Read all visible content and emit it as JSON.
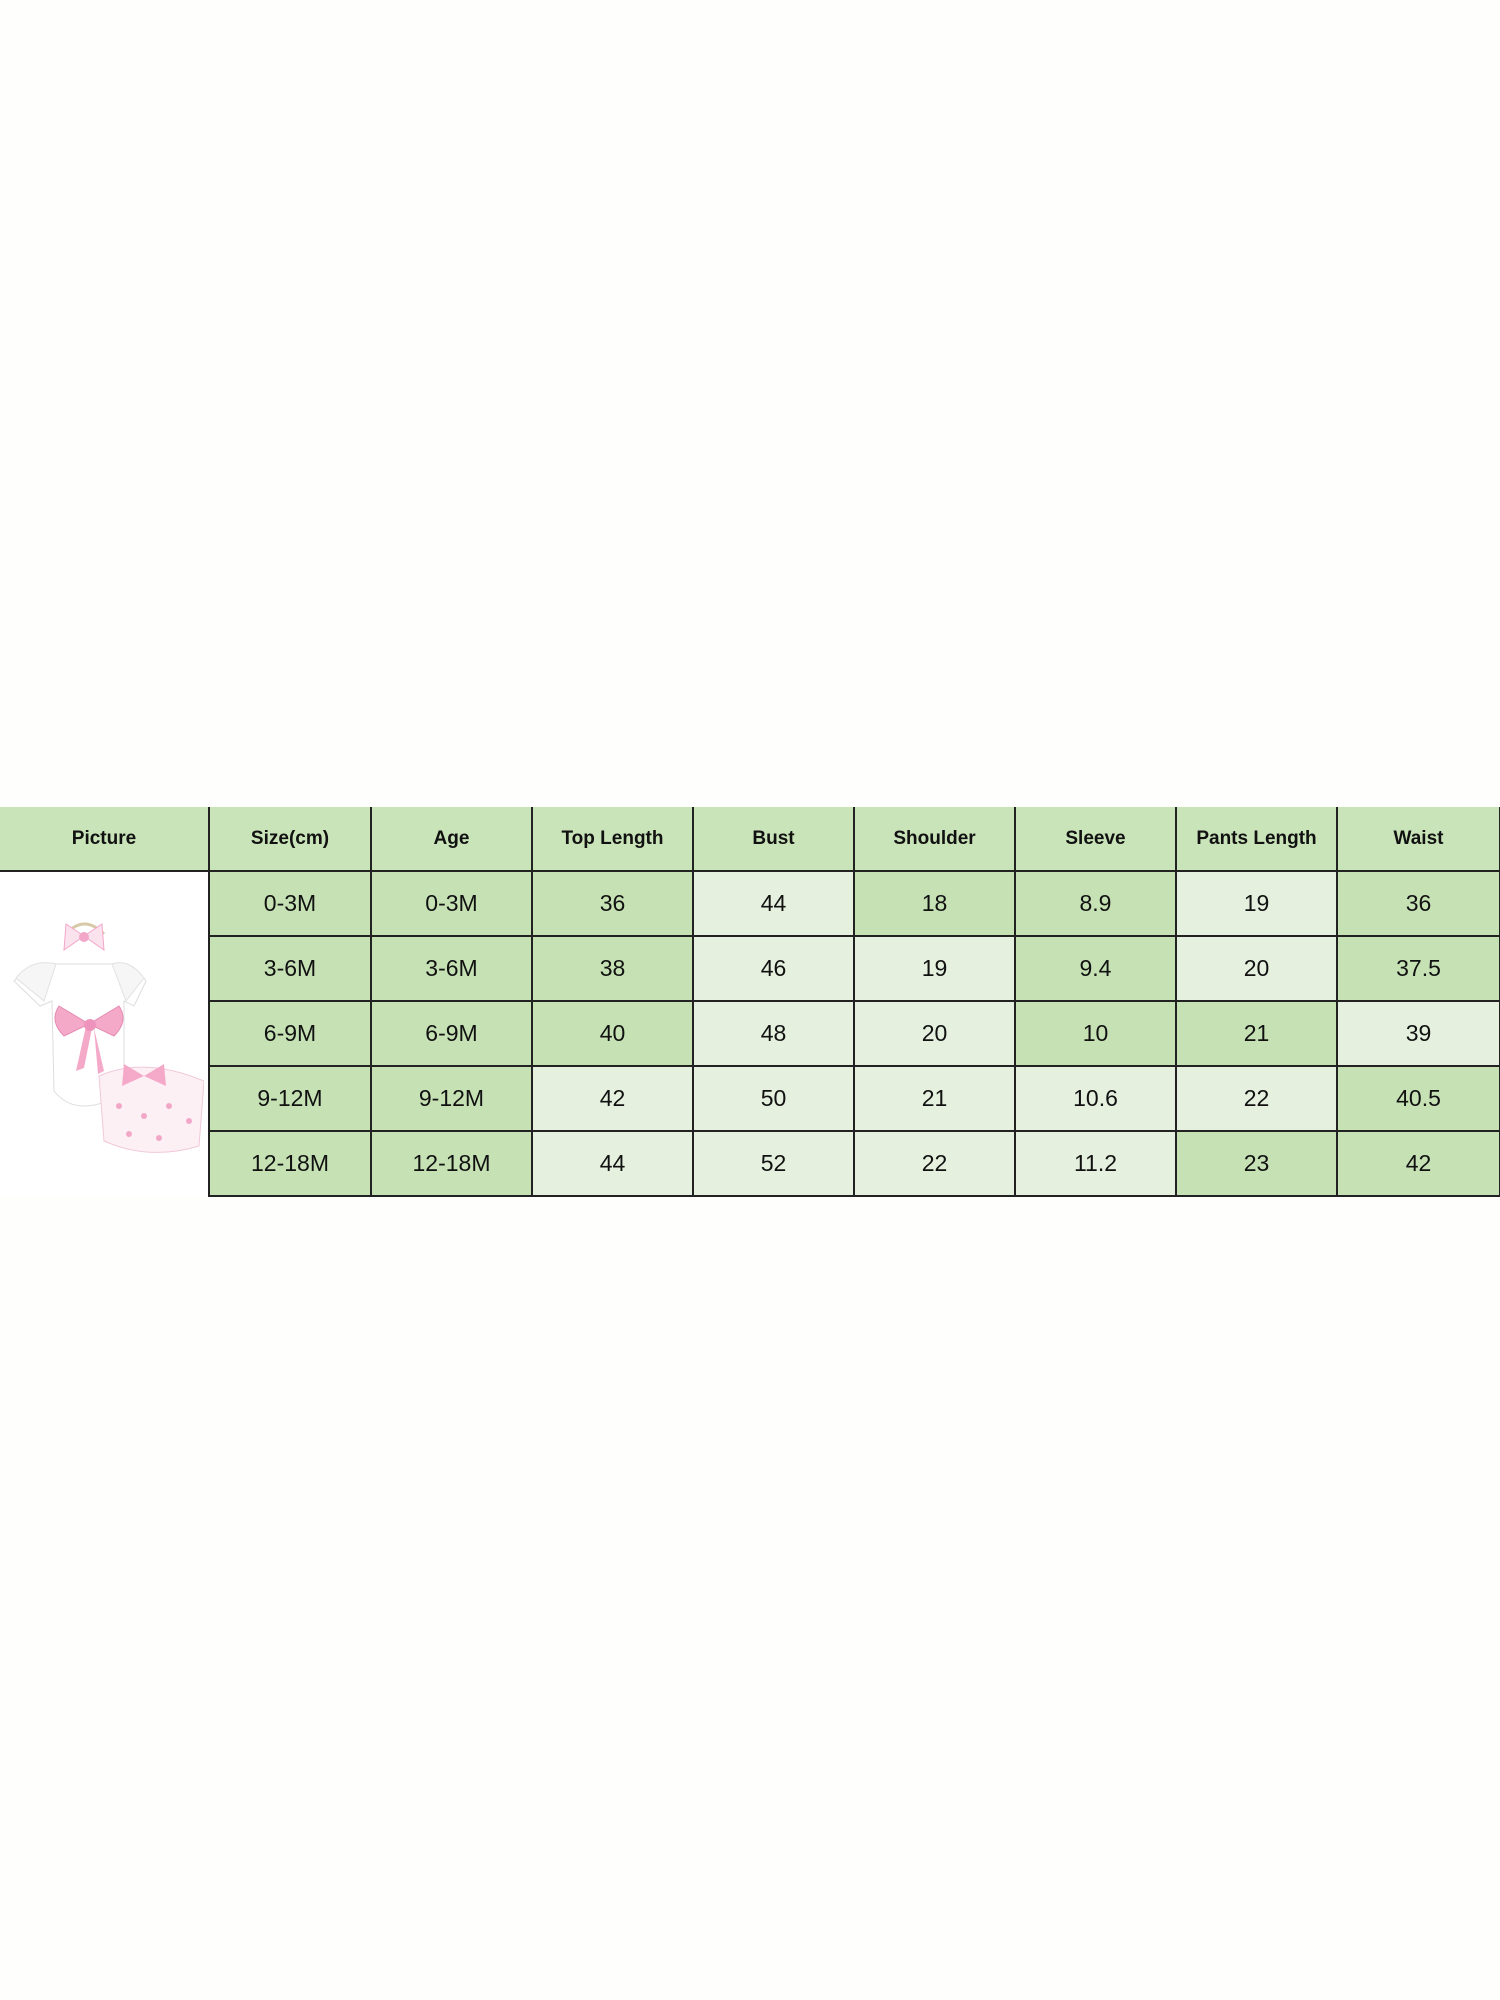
{
  "headers": [
    "Picture",
    "Size(cm)",
    "Age",
    "Top Length",
    "Bust",
    "Shoulder",
    "Sleeve",
    "Pants Length",
    "Waist"
  ],
  "rows": [
    [
      "0-3M",
      "0-3M",
      "36",
      "44",
      "18",
      "8.9",
      "19",
      "36"
    ],
    [
      "3-6M",
      "3-6M",
      "38",
      "46",
      "19",
      "9.4",
      "20",
      "37.5"
    ],
    [
      "6-9M",
      "6-9M",
      "40",
      "48",
      "20",
      "10",
      "21",
      "39"
    ],
    [
      "9-12M",
      "9-12M",
      "42",
      "50",
      "21",
      "10.6",
      "22",
      "40.5"
    ],
    [
      "12-18M",
      "12-18M",
      "44",
      "52",
      "22",
      "11.2",
      "23",
      "42"
    ]
  ],
  "shading": [
    "DDDLDDLD",
    "DDDLLDLD",
    "DDDLLDDL",
    "DDLLLLLD",
    "DDLLLLDD"
  ],
  "colors": {
    "header": "#c9e4b9",
    "dark_cell": "#c6e2b5",
    "light_cell": "#e5f1de",
    "bow": "#f2a7c8"
  },
  "picture_icon": "baby-outfit-with-pink-bow"
}
